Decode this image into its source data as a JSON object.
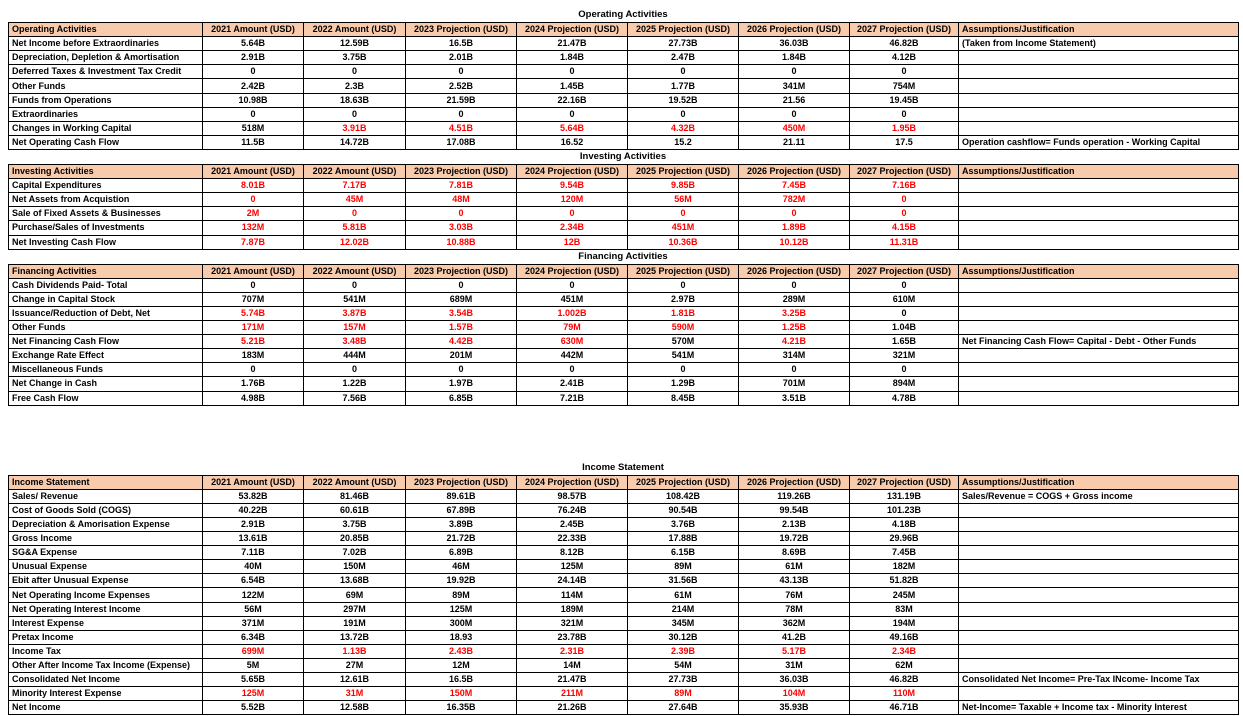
{
  "style": {
    "header_fill": "#f8cbad",
    "highlight": "#ff0000"
  },
  "sections": [
    {
      "title": "Operating Activities",
      "header": [
        "Operating Activities",
        "2021 Amount (USD)",
        "2022 Amount (USD)",
        "2023 Projection (USD)",
        "2024 Projection (USD)",
        "2025 Projection (USD)",
        "2026 Projection (USD)",
        "2027 Projection (USD)",
        "Assumptions/Justification"
      ],
      "rows": [
        {
          "label": "Net Income before Extraordinaries",
          "values": [
            "5.64B",
            "12.59B",
            "16.5B",
            "21.47B",
            "27.73B",
            "36.03B",
            "46.82B"
          ],
          "note": "(Taken from Income Statement)"
        },
        {
          "label": "Depreciation, Depletion & Amortisation",
          "values": [
            "2.91B",
            "3.75B",
            "2.01B",
            "1.84B",
            "2.47B",
            "1.84B",
            "4.12B"
          ]
        },
        {
          "label": "Deferred Taxes & Investment Tax Credit",
          "values": [
            "0",
            "0",
            "0",
            "0",
            "0",
            "0",
            "0"
          ]
        },
        {
          "label": "Other Funds",
          "values": [
            "2.42B",
            "2.3B",
            "2.52B",
            "1.45B",
            "1.77B",
            "341M",
            "754M"
          ]
        },
        {
          "label": "Funds from Operations",
          "values": [
            "10.98B",
            "18.63B",
            "21.59B",
            "22.16B",
            "19.52B",
            "21.56",
            "19.45B"
          ]
        },
        {
          "label": "Extraordinaries",
          "values": [
            "0",
            "0",
            "0",
            "0",
            "0",
            "0",
            "0"
          ]
        },
        {
          "label": "Changes in Working Capital",
          "values": [
            "518M",
            "3.91B",
            "4.51B",
            "5.64B",
            "4.32B",
            "450M",
            "1.95B"
          ],
          "red": [
            1,
            2,
            3,
            4,
            5,
            6
          ]
        },
        {
          "label": "Net Operating Cash Flow",
          "values": [
            "11.5B",
            "14.72B",
            "17.08B",
            "16.52",
            "15.2",
            "21.11",
            "17.5"
          ],
          "note": "Operation cashflow= Funds operation - Working Capital"
        }
      ]
    },
    {
      "title": "Investing Activities",
      "header": [
        "Investing Activities",
        "2021 Amount (USD)",
        "2022 Amount (USD)",
        "2023 Projection (USD)",
        "2024 Projection (USD)",
        "2025 Projection (USD)",
        "2026 Projection (USD)",
        "2027 Projection (USD)",
        "Assumptions/Justification"
      ],
      "rows": [
        {
          "label": "Capital Expenditures",
          "values": [
            "8.01B",
            "7.17B",
            "7.81B",
            "9.54B",
            "9.85B",
            "7.45B",
            "7.16B"
          ],
          "red": [
            0,
            1,
            2,
            3,
            4,
            5,
            6
          ]
        },
        {
          "label": "Net Assets from Acquistion",
          "values": [
            "0",
            "45M",
            "48M",
            "120M",
            "56M",
            "782M",
            "0"
          ],
          "red": [
            0,
            1,
            2,
            3,
            4,
            5,
            6
          ]
        },
        {
          "label": "Sale of Fixed Assets & Businesses",
          "values": [
            "2M",
            "0",
            "0",
            "0",
            "0",
            "0",
            "0"
          ],
          "red": [
            0,
            1,
            2,
            3,
            4,
            5,
            6
          ]
        },
        {
          "label": "Purchase/Sales of Investments",
          "values": [
            "132M",
            "5.81B",
            "3.03B",
            "2.34B",
            "451M",
            "1.89B",
            "4.15B"
          ],
          "red": [
            0,
            1,
            2,
            3,
            4,
            5,
            6
          ]
        },
        {
          "label": "Net Investing Cash Flow",
          "values": [
            "7.87B",
            "12.02B",
            "10.88B",
            "12B",
            "10.36B",
            "10.12B",
            "11.31B"
          ],
          "red": [
            0,
            1,
            2,
            3,
            4,
            5,
            6
          ]
        }
      ]
    },
    {
      "title": "Financing Activities",
      "header": [
        "Financing Activities",
        "2021 Amount (USD)",
        "2022 Amount (USD)",
        "2023 Projection (USD)",
        "2024 Projection (USD)",
        "2025 Projection (USD)",
        "2026 Projection (USD)",
        "2027 Projection (USD)",
        "Assumptions/Justification"
      ],
      "rows": [
        {
          "label": "Cash Dividends Paid- Total",
          "values": [
            "0",
            "0",
            "0",
            "0",
            "0",
            "0",
            "0"
          ]
        },
        {
          "label": "Change in Capital Stock",
          "values": [
            "707M",
            "541M",
            "689M",
            "451M",
            "2.97B",
            "289M",
            "610M"
          ]
        },
        {
          "label": "Issuance/Reduction of Debt, Net",
          "values": [
            "5.74B",
            "3.87B",
            "3.54B",
            "1.002B",
            "1.81B",
            "3.25B",
            "0"
          ],
          "red": [
            0,
            1,
            2,
            3,
            4,
            5
          ]
        },
        {
          "label": "Other Funds",
          "values": [
            "171M",
            "157M",
            "1.57B",
            "79M",
            "590M",
            "1.25B",
            "1.04B"
          ],
          "red": [
            0,
            1,
            2,
            3,
            4,
            5
          ]
        },
        {
          "label": "Net Financing Cash Flow",
          "values": [
            "5.21B",
            "3.48B",
            "4.42B",
            "630M",
            "570M",
            "4.21B",
            "1.65B"
          ],
          "red": [
            0,
            1,
            2,
            3,
            5
          ],
          "note": "Net Financing Cash Flow= Capital - Debt - Other Funds"
        },
        {
          "label": "Exchange Rate Effect",
          "values": [
            "183M",
            "444M",
            "201M",
            "442M",
            "541M",
            "314M",
            "321M"
          ]
        },
        {
          "label": "Miscellaneous Funds",
          "values": [
            "0",
            "0",
            "0",
            "0",
            "0",
            "0",
            "0"
          ]
        },
        {
          "label": "Net Change in Cash",
          "values": [
            "1.76B",
            "1.22B",
            "1.97B",
            "2.41B",
            "1.29B",
            "701M",
            "894M"
          ]
        },
        {
          "label": "Free Cash Flow",
          "values": [
            "4.98B",
            "7.56B",
            "6.85B",
            "7.21B",
            "8.45B",
            "3.51B",
            "4.78B"
          ]
        }
      ]
    },
    {
      "title": "Income Statement",
      "header": [
        "Income Statement",
        "2021 Amount (USD)",
        "2022 Amount (USD)",
        "2023 Projection (USD)",
        "2024 Projection (USD)",
        "2025 Projection (USD)",
        "2026 Projection (USD)",
        "2027 Projection (USD)",
        "Assumptions/Justification"
      ],
      "rows": [
        {
          "label": "Sales/ Revenue",
          "values": [
            "53.82B",
            "81.46B",
            "89.61B",
            "98.57B",
            "108.42B",
            "119.26B",
            "131.19B"
          ],
          "note": "Sales/Revenue = COGS + Gross income"
        },
        {
          "label": "Cost of Goods Sold (COGS)",
          "values": [
            "40.22B",
            "60.61B",
            "67.89B",
            "76.24B",
            "90.54B",
            "99.54B",
            "101.23B"
          ]
        },
        {
          "label": "Depreciation & Amorisation Expense",
          "values": [
            "2.91B",
            "3.75B",
            "3.89B",
            "2.45B",
            "3.76B",
            "2.13B",
            "4.18B"
          ]
        },
        {
          "label": "Gross Income",
          "values": [
            "13.61B",
            "20.85B",
            "21.72B",
            "22.33B",
            "17.88B",
            "19.72B",
            "29.96B"
          ]
        },
        {
          "label": "SG&A Expense",
          "values": [
            "7.11B",
            "7.02B",
            "6.89B",
            "8.12B",
            "6.15B",
            "8.69B",
            "7.45B"
          ]
        },
        {
          "label": "Unusual Expense",
          "values": [
            "40M",
            "150M",
            "46M",
            "125M",
            "89M",
            "61M",
            "182M"
          ]
        },
        {
          "label": "Ebit after Unusual Expense",
          "values": [
            "6.54B",
            "13.68B",
            "19.92B",
            "24.14B",
            "31.56B",
            "43.13B",
            "51.82B"
          ]
        },
        {
          "label": "Net Operating Income Expenses",
          "values": [
            "122M",
            "69M",
            "89M",
            "114M",
            "61M",
            "76M",
            "245M"
          ]
        },
        {
          "label": "Net Operating Interest Income",
          "values": [
            "56M",
            "297M",
            "125M",
            "189M",
            "214M",
            "78M",
            "83M"
          ]
        },
        {
          "label": "Interest Expense",
          "values": [
            "371M",
            "191M",
            "300M",
            "321M",
            "345M",
            "362M",
            "194M"
          ]
        },
        {
          "label": "Pretax Income",
          "values": [
            "6.34B",
            "13.72B",
            "18.93",
            "23.78B",
            "30.12B",
            "41.2B",
            "49.16B"
          ]
        },
        {
          "label": "Income Tax",
          "values": [
            "699M",
            "1.13B",
            "2.43B",
            "2.31B",
            "2.39B",
            "5.17B",
            "2.34B"
          ],
          "red": [
            0,
            1,
            2,
            3,
            4,
            5,
            6
          ]
        },
        {
          "label": "Other After Income Tax Income (Expense)",
          "values": [
            "5M",
            "27M",
            "12M",
            "14M",
            "54M",
            "31M",
            "62M"
          ]
        },
        {
          "label": "Consolidated Net Income",
          "values": [
            "5.65B",
            "12.61B",
            "16.5B",
            "21.47B",
            "27.73B",
            "36.03B",
            "46.82B"
          ],
          "note": "Consolidated Net Income= Pre-Tax INcome- Income Tax"
        },
        {
          "label": "Minority Interest Expense",
          "values": [
            "125M",
            "31M",
            "150M",
            "211M",
            "89M",
            "104M",
            "110M"
          ],
          "red": [
            0,
            1,
            2,
            3,
            4,
            5,
            6
          ]
        },
        {
          "label": "Net Income",
          "values": [
            "5.52B",
            "12.58B",
            "16.35B",
            "21.26B",
            "27.64B",
            "35.93B",
            "46.71B"
          ],
          "note": "Net-Income= Taxable + Income tax - Minority Interest"
        }
      ]
    }
  ]
}
